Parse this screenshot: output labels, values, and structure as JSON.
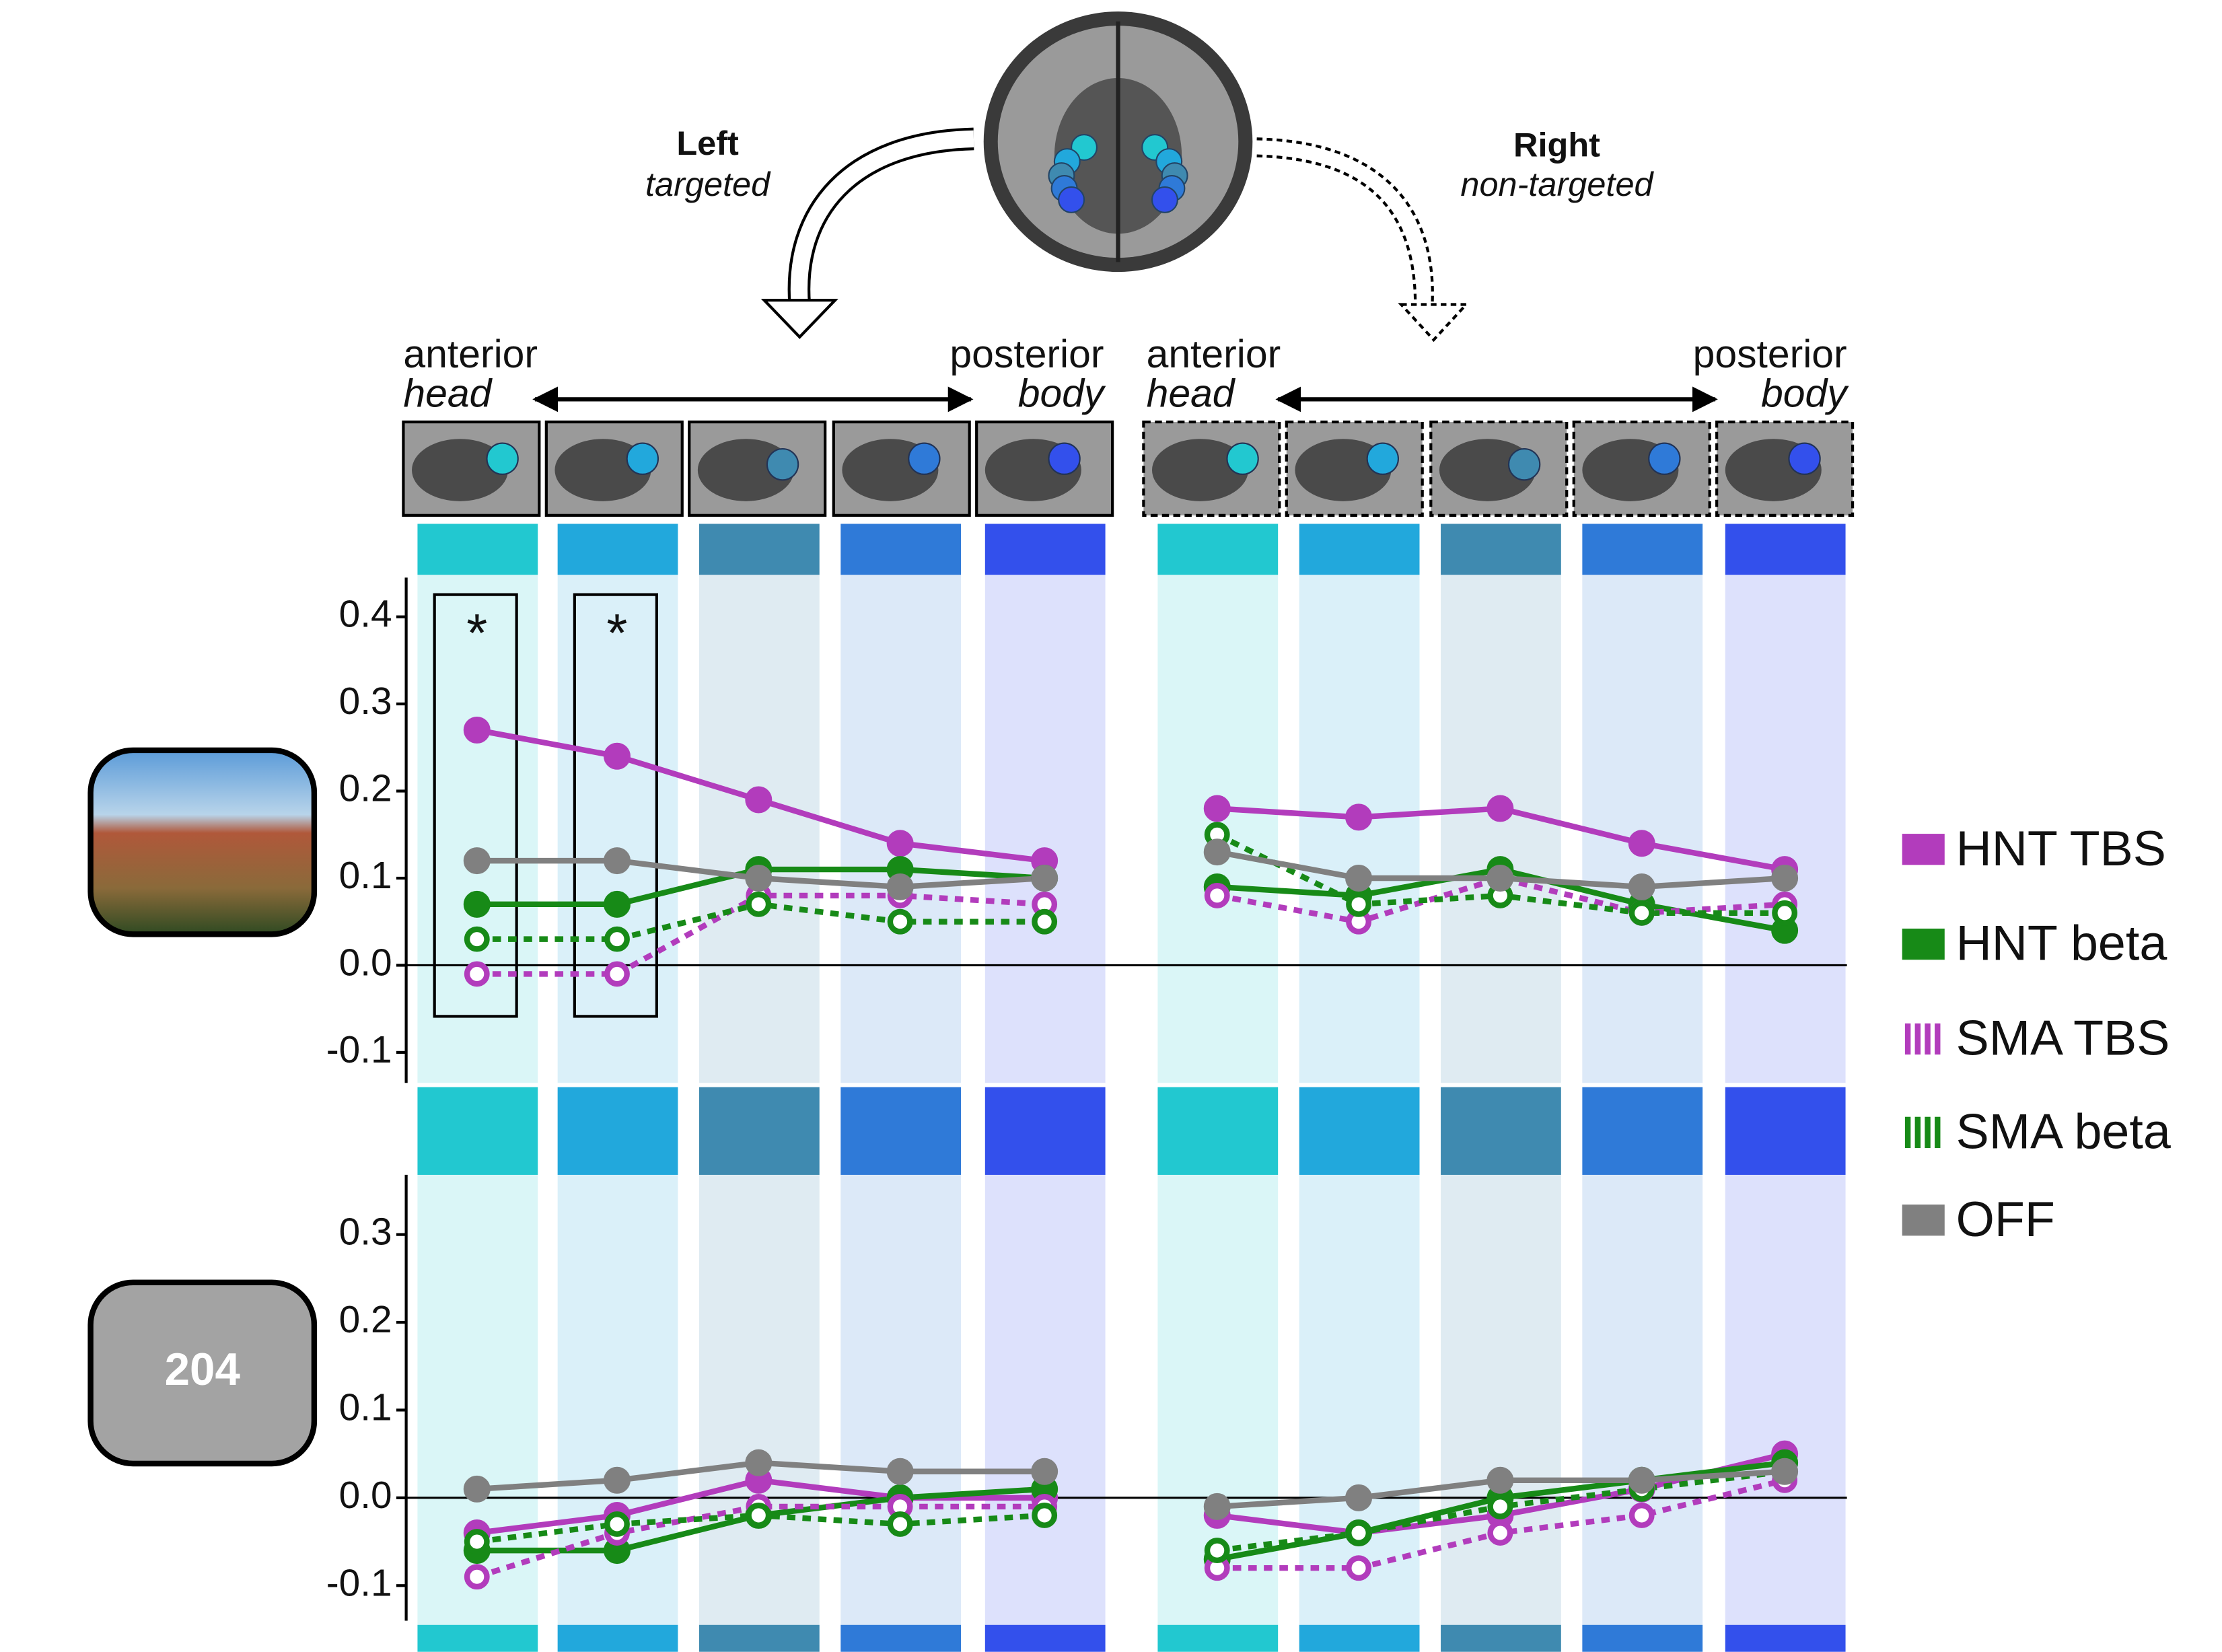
{
  "header": {
    "left": {
      "side": "Left",
      "role": "targeted",
      "front": "anterior",
      "front_part": "head",
      "back": "posterior",
      "back_part": "body"
    },
    "right": {
      "side": "Right",
      "role": "non-targeted",
      "front": "anterior",
      "front_part": "head",
      "back": "posterior",
      "back_part": "body"
    }
  },
  "count_label": "204",
  "chart_data": [
    {
      "type": "line",
      "categories": [
        null,
        null,
        null,
        null,
        null,
        null,
        null,
        null,
        null,
        null
      ],
      "ylim": [
        -0.135,
        0.445
      ],
      "yticks": [
        -0.1,
        {
          "value": 0,
          "label": "0.0"
        },
        0.1,
        0.2,
        0.3,
        0.4
      ],
      "annotations": [
        {
          "text": "*",
          "category": 0
        },
        {
          "text": "*",
          "category": 1
        }
      ],
      "series": [
        {
          "name": "HNT TBS",
          "color": "#b23cbc",
          "dashed": false,
          "values": [
            0.27,
            0.24,
            0.19,
            0.14,
            0.12,
            0.18,
            0.17,
            0.18,
            0.14,
            0.11
          ]
        },
        {
          "name": "HNT beta",
          "color": "#178a17",
          "dashed": false,
          "values": [
            0.07,
            0.07,
            0.11,
            0.11,
            0.1,
            0.09,
            0.08,
            0.11,
            0.07,
            0.04
          ]
        },
        {
          "name": "SMA TBS",
          "color": "#b23cbc",
          "dashed": true,
          "values": [
            -0.01,
            -0.01,
            0.08,
            0.08,
            0.07,
            0.08,
            0.05,
            0.1,
            0.06,
            0.07
          ]
        },
        {
          "name": "SMA beta",
          "color": "#178a17",
          "dashed": true,
          "values": [
            0.03,
            0.03,
            0.07,
            0.05,
            0.05,
            0.15,
            0.07,
            0.08,
            0.06,
            0.06
          ]
        },
        {
          "name": "OFF",
          "color": "#808080",
          "dashed": false,
          "values": [
            0.12,
            0.12,
            0.1,
            0.09,
            0.1,
            0.13,
            0.1,
            0.1,
            0.09,
            0.1
          ]
        }
      ]
    },
    {
      "type": "line",
      "categories": [
        null,
        null,
        null,
        null,
        null,
        null,
        null,
        null,
        null,
        null
      ],
      "ylim": [
        -0.14,
        0.368
      ],
      "yticks": [
        -0.1,
        {
          "value": 0,
          "label": "0.0"
        },
        0.1,
        0.2,
        0.3
      ],
      "series": [
        {
          "name": "HNT TBS",
          "color": "#b23cbc",
          "dashed": false,
          "values": [
            -0.04,
            -0.02,
            0.02,
            0,
            0,
            -0.02,
            -0.04,
            -0.02,
            0.01,
            0.05
          ]
        },
        {
          "name": "HNT beta",
          "color": "#178a17",
          "dashed": false,
          "values": [
            -0.06,
            -0.06,
            -0.02,
            0,
            0.01,
            -0.07,
            -0.04,
            0,
            0.02,
            0.04
          ]
        },
        {
          "name": "SMA TBS",
          "color": "#b23cbc",
          "dashed": true,
          "values": [
            -0.09,
            -0.04,
            -0.01,
            -0.01,
            -0.01,
            -0.08,
            -0.08,
            -0.04,
            -0.02,
            0.02
          ]
        },
        {
          "name": "SMA beta",
          "color": "#178a17",
          "dashed": true,
          "values": [
            -0.05,
            -0.03,
            -0.02,
            -0.03,
            -0.02,
            -0.06,
            -0.04,
            -0.01,
            0.01,
            0.03
          ]
        },
        {
          "name": "OFF",
          "color": "#808080",
          "dashed": false,
          "values": [
            0.01,
            0.02,
            0.04,
            0.03,
            0.03,
            -0.01,
            0,
            0.02,
            0.02,
            0.03
          ]
        }
      ]
    }
  ]
}
